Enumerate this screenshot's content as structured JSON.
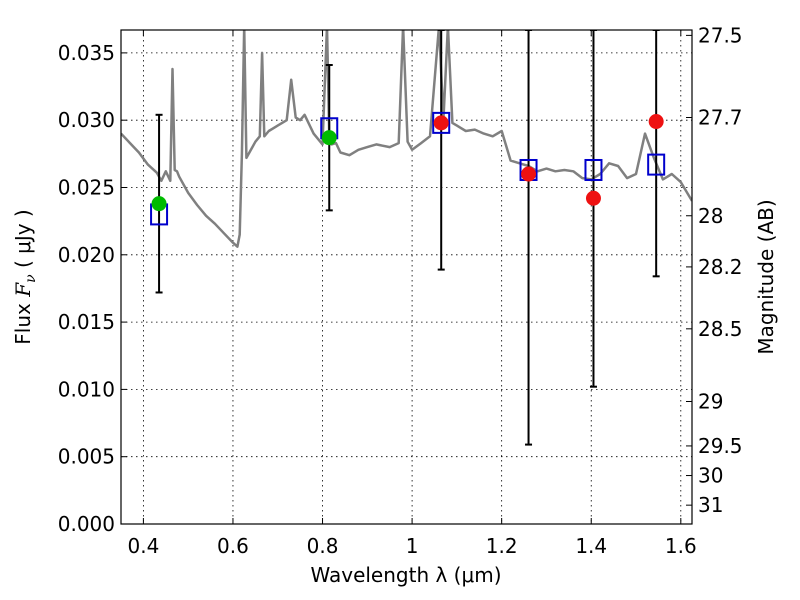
{
  "chart_data": {
    "type": "scatter",
    "xlabel": "Wavelength  λ (μm)",
    "ylabel_prefix": "Flux  ",
    "ylabel_symbol": "F",
    "ylabel_subscript": "ν",
    "ylabel_suffix": "  ( μJy )",
    "y2label": "Magnitude (AB)",
    "xlim": [
      0.35,
      1.625
    ],
    "ylim": [
      0.0,
      0.0367
    ],
    "grid": true,
    "x_ticks": [
      {
        "value": 0.4,
        "label": "0.4"
      },
      {
        "value": 0.6,
        "label": "0.6"
      },
      {
        "value": 0.8,
        "label": "0.8"
      },
      {
        "value": 1.0,
        "label": "1"
      },
      {
        "value": 1.2,
        "label": "1.2"
      },
      {
        "value": 1.4,
        "label": "1.4"
      },
      {
        "value": 1.6,
        "label": "1.6"
      }
    ],
    "y_ticks": [
      {
        "value": 0.0,
        "label": "0.000"
      },
      {
        "value": 0.005,
        "label": "0.005"
      },
      {
        "value": 0.01,
        "label": "0.010"
      },
      {
        "value": 0.015,
        "label": "0.015"
      },
      {
        "value": 0.02,
        "label": "0.020"
      },
      {
        "value": 0.025,
        "label": "0.025"
      },
      {
        "value": 0.03,
        "label": "0.030"
      },
      {
        "value": 0.035,
        "label": "0.035"
      }
    ],
    "magnitude_ticks": [
      {
        "label": "27.5",
        "flux": 0.0363
      },
      {
        "label": "27.7",
        "flux": 0.0302
      },
      {
        "label": "28",
        "flux": 0.0229
      },
      {
        "label": "28.2",
        "flux": 0.0191
      },
      {
        "label": "28.5",
        "flux": 0.0145
      },
      {
        "label": "29",
        "flux": 0.0091
      },
      {
        "label": "29.5",
        "flux": 0.0058
      },
      {
        "label": "30",
        "flux": 0.0036
      },
      {
        "label": "31",
        "flux": 0.0014
      }
    ],
    "colors": {
      "spectrum": "#808080",
      "model_box": "#0000cc",
      "detection": "#00bb00",
      "nondetection": "#ee1111",
      "errorbar": "#000000"
    },
    "spectrum": {
      "x": [
        0.35,
        0.37,
        0.39,
        0.41,
        0.43,
        0.44,
        0.45,
        0.46,
        0.465,
        0.47,
        0.475,
        0.48,
        0.5,
        0.52,
        0.54,
        0.56,
        0.58,
        0.6,
        0.61,
        0.615,
        0.62,
        0.625,
        0.63,
        0.65,
        0.66,
        0.665,
        0.67,
        0.68,
        0.7,
        0.72,
        0.73,
        0.74,
        0.75,
        0.76,
        0.78,
        0.8,
        0.81,
        0.815,
        0.82,
        0.83,
        0.84,
        0.86,
        0.88,
        0.9,
        0.92,
        0.95,
        0.97,
        0.98,
        0.99,
        1.0,
        1.02,
        1.04,
        1.06,
        1.07,
        1.08,
        1.09,
        1.1,
        1.12,
        1.14,
        1.16,
        1.18,
        1.2,
        1.22,
        1.24,
        1.26,
        1.28,
        1.3,
        1.32,
        1.34,
        1.36,
        1.38,
        1.4,
        1.42,
        1.44,
        1.46,
        1.48,
        1.5,
        1.52,
        1.54,
        1.56,
        1.58,
        1.6,
        1.625
      ],
      "y": [
        0.029,
        0.0283,
        0.0276,
        0.0267,
        0.0261,
        0.0255,
        0.0262,
        0.0255,
        0.0338,
        0.0263,
        0.0262,
        0.0258,
        0.0246,
        0.0237,
        0.0229,
        0.0223,
        0.0216,
        0.0209,
        0.0206,
        0.0215,
        0.0275,
        0.037,
        0.0272,
        0.0284,
        0.0288,
        0.035,
        0.0288,
        0.0292,
        0.0296,
        0.03,
        0.033,
        0.0302,
        0.03,
        0.0304,
        0.029,
        0.0282,
        0.037,
        0.029,
        0.0282,
        0.0283,
        0.0276,
        0.0274,
        0.0278,
        0.028,
        0.0282,
        0.028,
        0.0283,
        0.037,
        0.0284,
        0.0278,
        0.0283,
        0.0288,
        0.037,
        0.03,
        0.037,
        0.0298,
        0.0296,
        0.0292,
        0.0293,
        0.029,
        0.0288,
        0.0292,
        0.027,
        0.0268,
        0.0266,
        0.0262,
        0.0264,
        0.0262,
        0.0263,
        0.0262,
        0.0257,
        0.0256,
        0.026,
        0.0268,
        0.0266,
        0.0257,
        0.026,
        0.029,
        0.0272,
        0.0256,
        0.026,
        0.0254,
        0.024
      ]
    },
    "model_points": {
      "x": [
        0.435,
        0.815,
        1.065,
        1.26,
        1.405,
        1.545
      ],
      "y": [
        0.023,
        0.0294,
        0.0298,
        0.0263,
        0.0263,
        0.0267
      ]
    },
    "detections": {
      "x": [
        0.435,
        0.815
      ],
      "y": [
        0.0238,
        0.0287
      ],
      "yerr_low": [
        0.0172,
        0.0233
      ],
      "yerr_high": [
        0.0304,
        0.0341
      ]
    },
    "nondetections": {
      "x": [
        1.065,
        1.26,
        1.405,
        1.545
      ],
      "y": [
        0.0298,
        0.026,
        0.0242,
        0.0299
      ],
      "yerr_low": [
        0.0189,
        0.0059,
        0.0102,
        0.0184
      ],
      "yerr_high": [
        0.0367,
        0.0367,
        0.0367,
        0.0367
      ]
    }
  }
}
